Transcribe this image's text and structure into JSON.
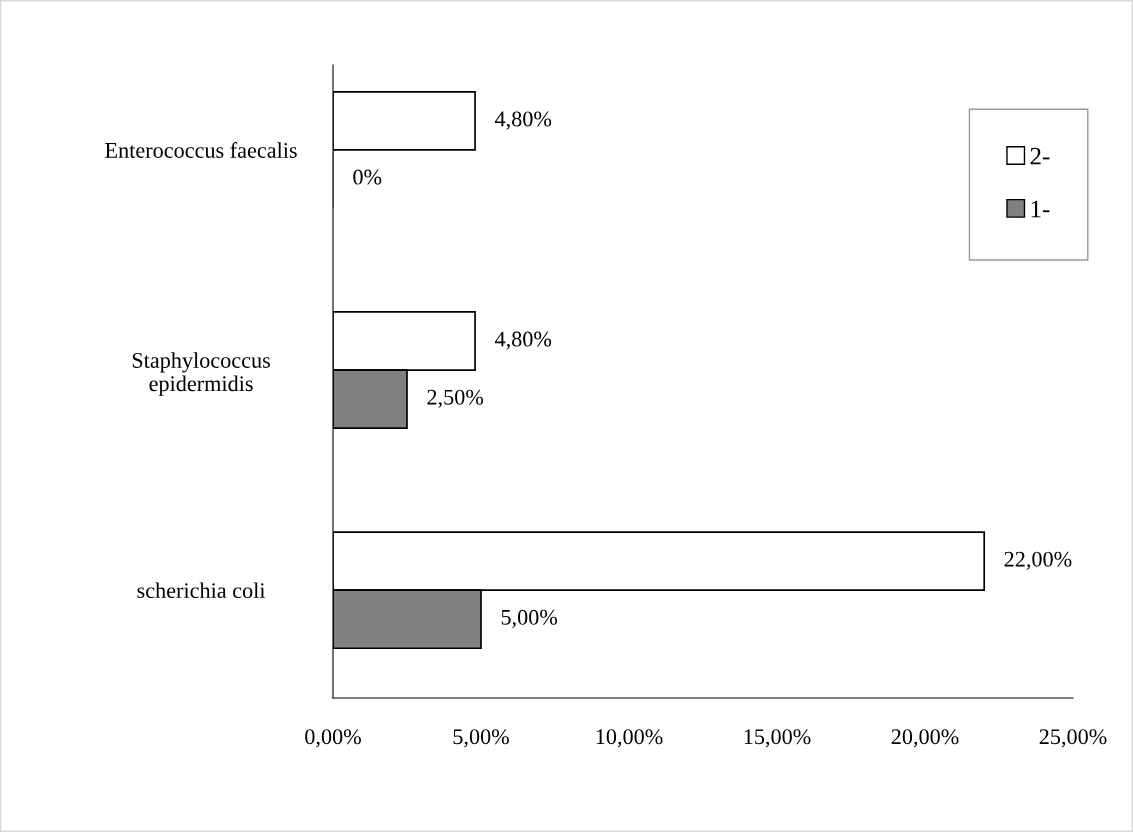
{
  "chart_data": {
    "type": "bar",
    "orientation": "horizontal",
    "categories": [
      "Enterococcus faecalis",
      "Staphylococcus\nepidermidis",
      "scherichia coli"
    ],
    "series": [
      {
        "name": "2-",
        "color": "#ffffff",
        "values": [
          4.8,
          4.8,
          22
        ],
        "value_labels": [
          "4,80%",
          "4,80%",
          "22,00%"
        ]
      },
      {
        "name": "1-",
        "color": "#808080",
        "values": [
          0,
          2.5,
          5
        ],
        "value_labels": [
          "0%",
          "2,50%",
          "5,00%"
        ]
      }
    ],
    "xlim": [
      0,
      25
    ],
    "xticks": [
      {
        "value": 0,
        "label": "0,00%"
      },
      {
        "value": 5,
        "label": "5,00%"
      },
      {
        "value": 10,
        "label": "10,00%"
      },
      {
        "value": 15,
        "label": "15,00%"
      },
      {
        "value": 20,
        "label": "20,00%"
      },
      {
        "value": 25,
        "label": "25,00%"
      }
    ],
    "grid": false,
    "legend": "top right"
  }
}
